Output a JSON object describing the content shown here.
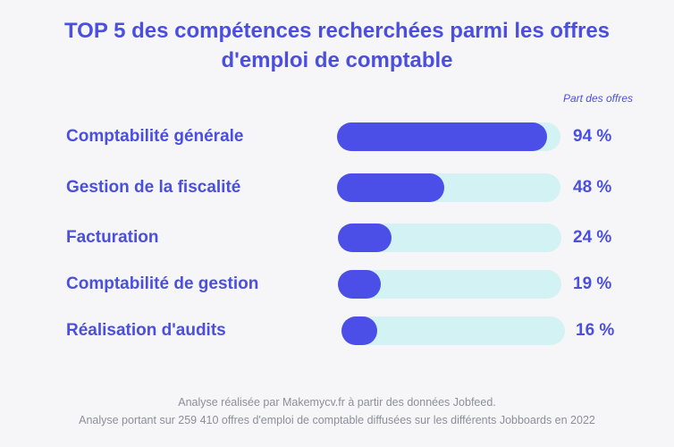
{
  "chart_data": {
    "type": "bar",
    "orientation": "horizontal",
    "title_line1": "TOP 5 des compétences recherchées parmi les offres",
    "title_line2": "d'emploi de comptable",
    "value_header": "Part des offres",
    "categories": [
      "Comptabilité générale",
      "Gestion de la fiscalité",
      "Facturation",
      "Comptabilité de gestion",
      "Réalisation d'audits"
    ],
    "values": [
      94,
      48,
      24,
      19,
      16
    ],
    "value_labels": [
      "94 %",
      "48 %",
      "24 %",
      "19 %",
      "16 %"
    ],
    "unit": "%",
    "xlim": [
      0,
      100
    ],
    "colors": {
      "bar": "#4b4fe8",
      "track": "#d3f2f3",
      "text": "#4b4fe0"
    }
  },
  "footer": {
    "line1": "Analyse réalisée par Makemycv.fr à partir des données Jobfeed.",
    "line2": "Analyse portant sur 259 410 offres d'emploi de comptable diffusées sur les différents Jobboards en 2022"
  }
}
